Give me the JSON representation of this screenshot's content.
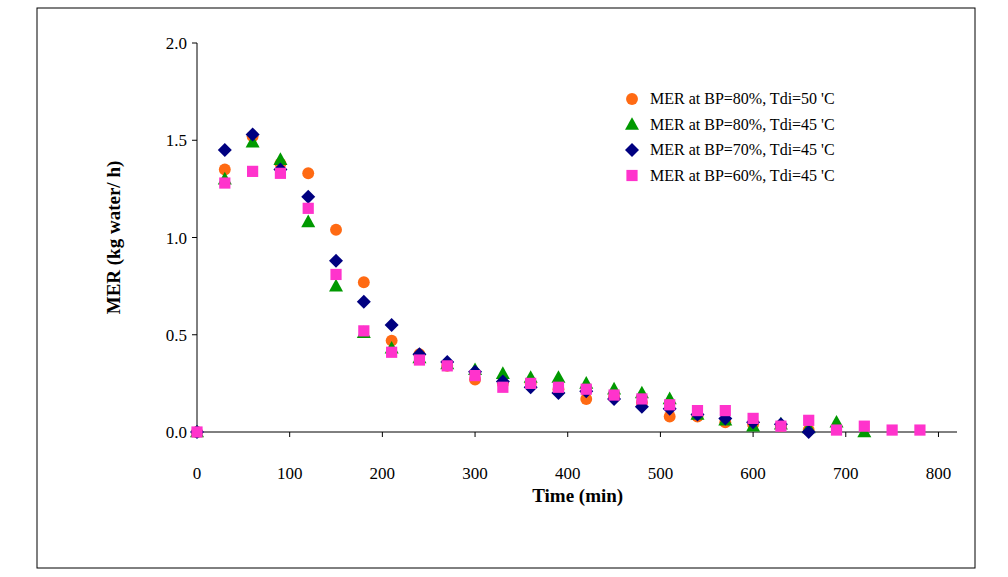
{
  "chart_data": {
    "type": "scatter",
    "xlabel": "Time (min)",
    "ylabel": "MER (kg water/ h)",
    "xlim": [
      0,
      820
    ],
    "xticks": [
      0,
      100,
      200,
      300,
      400,
      500,
      600,
      700,
      800
    ],
    "ylim": [
      0,
      2
    ],
    "yticks": [
      {
        "value": 0,
        "label": "0.0"
      },
      0.5,
      {
        "value": 1,
        "label": "1.0"
      },
      1.5,
      {
        "value": 2,
        "label": "2.0"
      }
    ],
    "grid": false,
    "legend": "upper right",
    "series": [
      {
        "name": "MER at BP=80%, Tdi=50 'C",
        "color": "#ff6a13",
        "marker": "circle",
        "x": [
          0,
          30,
          60,
          90,
          120,
          150,
          180,
          210,
          240,
          270,
          300,
          330,
          360,
          390,
          420,
          450,
          480,
          510,
          540,
          570,
          600,
          630,
          660
        ],
        "values": [
          0.0,
          1.35,
          1.52,
          1.38,
          1.33,
          1.04,
          0.77,
          0.47,
          0.4,
          0.34,
          0.27,
          0.25,
          0.25,
          0.22,
          0.17,
          0.18,
          0.15,
          0.08,
          0.08,
          0.05,
          0.04,
          0.03,
          0.01
        ]
      },
      {
        "name": "MER at BP=80%, Tdi=45 'C",
        "color": "#009900",
        "marker": "triangle",
        "x": [
          0,
          30,
          60,
          90,
          120,
          150,
          180,
          210,
          240,
          270,
          300,
          330,
          360,
          390,
          420,
          450,
          480,
          510,
          540,
          570,
          600,
          630,
          660,
          690,
          720
        ],
        "values": [
          0.0,
          1.3,
          1.49,
          1.4,
          1.08,
          0.75,
          0.51,
          0.43,
          0.38,
          0.35,
          0.32,
          0.3,
          0.28,
          0.28,
          0.25,
          0.22,
          0.2,
          0.17,
          0.09,
          0.06,
          0.03,
          0.04,
          0.02,
          0.05,
          0.0
        ]
      },
      {
        "name": "MER at BP=70%, Tdi=45 'C",
        "color": "#000080",
        "marker": "diamond",
        "x": [
          0,
          30,
          60,
          90,
          120,
          150,
          180,
          210,
          240,
          270,
          300,
          330,
          360,
          390,
          420,
          450,
          480,
          510,
          540,
          570,
          600,
          630,
          660
        ],
        "values": [
          0.0,
          1.45,
          1.53,
          1.35,
          1.21,
          0.88,
          0.67,
          0.55,
          0.4,
          0.36,
          0.31,
          0.26,
          0.23,
          0.2,
          0.21,
          0.17,
          0.13,
          0.12,
          0.09,
          0.07,
          0.05,
          0.04,
          0.0
        ]
      },
      {
        "name": "MER at BP=60%, Tdi=45 'C",
        "color": "#ff33cc",
        "marker": "square",
        "x": [
          0,
          30,
          60,
          90,
          120,
          150,
          180,
          210,
          240,
          270,
          300,
          330,
          360,
          390,
          420,
          450,
          480,
          510,
          540,
          570,
          600,
          630,
          660,
          690,
          720,
          750,
          780
        ],
        "values": [
          0.0,
          1.28,
          1.34,
          1.33,
          1.15,
          0.81,
          0.52,
          0.41,
          0.37,
          0.34,
          0.29,
          0.23,
          0.25,
          0.23,
          0.22,
          0.19,
          0.17,
          0.14,
          0.11,
          0.11,
          0.07,
          0.03,
          0.06,
          0.01,
          0.03,
          0.01,
          0.01
        ]
      }
    ]
  }
}
